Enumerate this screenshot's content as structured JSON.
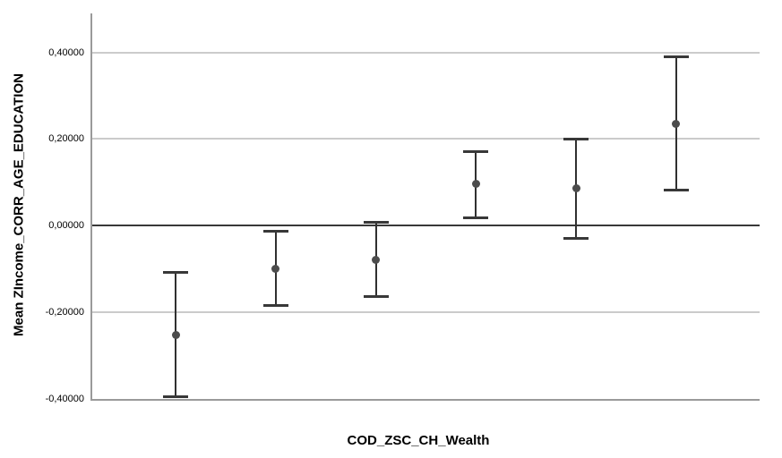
{
  "chart_data": {
    "type": "scatter",
    "subtype": "error-bar-plot",
    "title": "",
    "xlabel": "COD_ZSC_CH_Wealth",
    "ylabel": "Mean ZIncome_CORR_AGE_EDUCATION",
    "ylim": [
      -0.4,
      0.49
    ],
    "grid": "horizontal",
    "y_ticks": [
      {
        "value": 0.4,
        "label": "0,40000"
      },
      {
        "value": 0.2,
        "label": "0,20000"
      },
      {
        "value": 0.0,
        "label": "0,00000"
      },
      {
        "value": -0.2,
        "label": "-0,20000"
      },
      {
        "value": -0.4,
        "label": "-0,40000"
      }
    ],
    "gridline_values": [
      0.4,
      0.2,
      -0.2
    ],
    "reference_line_value": 0.0,
    "x_tick_labels_visible": false,
    "points": [
      {
        "category_index": 1,
        "mean": -0.253,
        "ci_low": -0.398,
        "ci_high": -0.104
      },
      {
        "category_index": 2,
        "mean": -0.099,
        "ci_low": -0.187,
        "ci_high": -0.009
      },
      {
        "category_index": 3,
        "mean": -0.078,
        "ci_low": -0.166,
        "ci_high": 0.01
      },
      {
        "category_index": 4,
        "mean": 0.096,
        "ci_low": 0.016,
        "ci_high": 0.174
      },
      {
        "category_index": 5,
        "mean": 0.086,
        "ci_low": -0.032,
        "ci_high": 0.203
      },
      {
        "category_index": 6,
        "mean": 0.235,
        "ci_low": 0.079,
        "ci_high": 0.392
      }
    ],
    "colors": {
      "background": "#ffffff",
      "error_bar": "#303030",
      "error_bar_cap": "#383838",
      "mean_dot": "#4c4c4c",
      "gridline": "#cbcbcb",
      "reference_line": "#383838",
      "axis_line": "#9a9a9a",
      "text": "#000000"
    }
  }
}
